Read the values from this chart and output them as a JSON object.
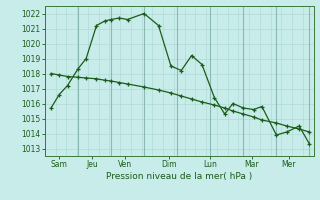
{
  "background_color": "#c8ecea",
  "grid_minor_color": "#b0dbd8",
  "grid_major_color": "#8ab8b4",
  "line_color": "#1a5c1a",
  "xlabel": "Pression niveau de la mer( hPa )",
  "xlim": [
    0,
    13
  ],
  "ylim": [
    1012.5,
    1022.5
  ],
  "yticks": [
    1013,
    1014,
    1015,
    1016,
    1017,
    1018,
    1019,
    1020,
    1021,
    1022
  ],
  "xtick_positions": [
    0.7,
    2.3,
    3.9,
    6.0,
    8.0,
    10.0,
    11.8
  ],
  "xtick_labels": [
    "Sam",
    "Jeu",
    "Ven",
    "Dim",
    "Lun",
    "Mar",
    "Mer"
  ],
  "day_vlines": [
    0.0,
    1.6,
    3.2,
    4.8,
    6.4,
    8.0,
    9.6,
    11.2,
    12.8
  ],
  "series1_x": [
    0.3,
    0.7,
    1.1,
    1.6,
    2.0,
    2.5,
    2.9,
    3.2,
    3.6,
    4.0,
    4.8,
    5.5,
    6.1,
    6.6,
    7.1,
    7.6,
    8.2,
    8.7,
    9.1,
    9.6,
    10.1,
    10.5,
    11.2,
    11.7,
    12.3,
    12.8
  ],
  "series1_y": [
    1015.7,
    1016.6,
    1017.2,
    1018.3,
    1019.0,
    1021.2,
    1021.5,
    1021.6,
    1021.7,
    1021.6,
    1022.0,
    1021.2,
    1018.5,
    1018.2,
    1019.2,
    1018.6,
    1016.4,
    1015.3,
    1016.0,
    1015.7,
    1015.6,
    1015.8,
    1013.9,
    1014.1,
    1014.5,
    1013.3
  ],
  "series2_x": [
    0.3,
    0.7,
    1.1,
    1.6,
    2.0,
    2.5,
    2.9,
    3.2,
    3.6,
    4.0,
    4.8,
    5.5,
    6.1,
    6.6,
    7.1,
    7.6,
    8.2,
    8.7,
    9.1,
    9.6,
    10.1,
    10.5,
    11.2,
    11.7,
    12.3,
    12.8
  ],
  "series2_y": [
    1018.0,
    1017.9,
    1017.8,
    1017.75,
    1017.7,
    1017.65,
    1017.55,
    1017.5,
    1017.4,
    1017.3,
    1017.1,
    1016.9,
    1016.7,
    1016.5,
    1016.3,
    1016.1,
    1015.9,
    1015.7,
    1015.5,
    1015.3,
    1015.1,
    1014.9,
    1014.7,
    1014.5,
    1014.3,
    1014.1
  ]
}
